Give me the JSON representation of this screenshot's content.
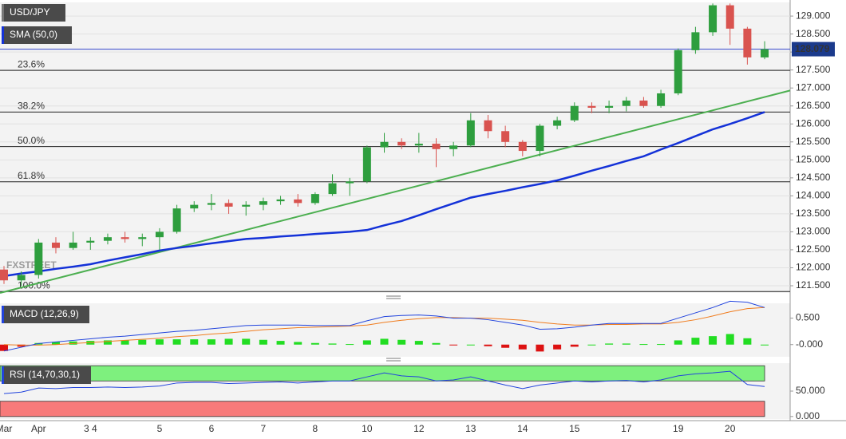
{
  "chart_data": [
    {
      "type": "candlestick",
      "symbol": "USD/JPY",
      "indicator": "SMA (50,0)",
      "watermark": "FXSTREET",
      "categories": [
        "Mar",
        null,
        "Apr",
        null,
        null,
        "3 4",
        null,
        null,
        null,
        "5",
        null,
        null,
        "6",
        null,
        null,
        "7",
        null,
        null,
        "8",
        null,
        null,
        "10",
        null,
        null,
        "12",
        null,
        null,
        "13",
        null,
        null,
        "14",
        null,
        null,
        "15",
        null,
        null,
        "17",
        null,
        null,
        "19",
        null,
        null,
        "20",
        null,
        null
      ],
      "ohlc": [
        [
          121.95,
          122.05,
          121.55,
          121.65
        ],
        [
          121.65,
          121.9,
          121.5,
          121.8
        ],
        [
          121.8,
          122.8,
          121.7,
          122.7
        ],
        [
          122.7,
          122.85,
          122.4,
          122.55
        ],
        [
          122.55,
          123.0,
          122.5,
          122.7
        ],
        [
          122.7,
          122.85,
          122.5,
          122.75
        ],
        [
          122.75,
          122.95,
          122.65,
          122.85
        ],
        [
          122.85,
          123.0,
          122.7,
          122.8
        ],
        [
          122.8,
          122.95,
          122.6,
          122.85
        ],
        [
          122.85,
          123.1,
          122.5,
          123.0
        ],
        [
          123.0,
          123.75,
          122.95,
          123.65
        ],
        [
          123.65,
          123.85,
          123.55,
          123.75
        ],
        [
          123.75,
          124.05,
          123.6,
          123.8
        ],
        [
          123.8,
          123.9,
          123.5,
          123.7
        ],
        [
          123.7,
          123.85,
          123.45,
          123.75
        ],
        [
          123.75,
          123.95,
          123.6,
          123.85
        ],
        [
          123.85,
          124.0,
          123.75,
          123.9
        ],
        [
          123.9,
          124.05,
          123.7,
          123.8
        ],
        [
          123.8,
          124.1,
          123.75,
          124.05
        ],
        [
          124.05,
          124.6,
          124.0,
          124.35
        ],
        [
          124.35,
          124.5,
          124.0,
          124.4
        ],
        [
          124.4,
          125.4,
          124.35,
          125.35
        ],
        [
          125.35,
          125.75,
          125.2,
          125.5
        ],
        [
          125.5,
          125.6,
          125.3,
          125.4
        ],
        [
          125.4,
          125.75,
          125.2,
          125.45
        ],
        [
          125.45,
          125.6,
          124.8,
          125.3
        ],
        [
          125.3,
          125.5,
          125.1,
          125.4
        ],
        [
          125.4,
          126.3,
          125.35,
          126.1
        ],
        [
          126.1,
          126.25,
          125.6,
          125.8
        ],
        [
          125.8,
          125.95,
          125.35,
          125.5
        ],
        [
          125.5,
          125.55,
          125.1,
          125.25
        ],
        [
          125.25,
          126.0,
          125.1,
          125.95
        ],
        [
          125.95,
          126.2,
          125.85,
          126.1
        ],
        [
          126.1,
          126.6,
          126.05,
          126.5
        ],
        [
          126.5,
          126.6,
          126.3,
          126.45
        ],
        [
          126.45,
          126.65,
          126.3,
          126.5
        ],
        [
          126.5,
          126.75,
          126.35,
          126.65
        ],
        [
          126.65,
          126.75,
          126.45,
          126.5
        ],
        [
          126.5,
          126.95,
          126.45,
          126.85
        ],
        [
          126.85,
          128.1,
          126.8,
          128.05
        ],
        [
          128.05,
          128.7,
          127.95,
          128.55
        ],
        [
          128.55,
          129.35,
          128.45,
          129.3
        ],
        [
          129.3,
          129.35,
          128.2,
          128.65
        ],
        [
          128.65,
          128.7,
          127.65,
          127.85
        ],
        [
          127.85,
          128.3,
          127.8,
          128.079
        ]
      ],
      "up_color": "#2e9e3e",
      "down_color": "#d9534f",
      "sma": [
        121.77,
        121.84,
        121.9,
        121.97,
        122.03,
        122.1,
        122.2,
        122.29,
        122.38,
        122.48,
        122.55,
        122.61,
        122.68,
        122.74,
        122.8,
        122.83,
        122.87,
        122.9,
        122.94,
        122.97,
        123.0,
        123.05,
        123.18,
        123.3,
        123.46,
        123.63,
        123.79,
        123.95,
        124.05,
        124.14,
        124.24,
        124.33,
        124.43,
        124.56,
        124.7,
        124.83,
        124.97,
        125.1,
        125.29,
        125.47,
        125.66,
        125.85,
        126.0,
        126.16,
        126.33
      ],
      "sma_color": "#1432d8",
      "trendline": [
        121.3,
        126.93
      ],
      "trendline_color": "#4caf50",
      "fib_levels": [
        {
          "label": "23.6%",
          "value": 127.49
        },
        {
          "label": "38.2%",
          "value": 126.33
        },
        {
          "label": "50.0%",
          "value": 125.37
        },
        {
          "label": "61.8%",
          "value": 124.39
        },
        {
          "label": "100.0%",
          "value": 121.34
        }
      ],
      "last_price": 128.079,
      "ylim": [
        121.3,
        129.38
      ],
      "yticks": [
        {
          "value": 121.5,
          "label": "121.500"
        },
        {
          "value": 122,
          "label": "122.000"
        },
        {
          "value": 122.5,
          "label": "122.500"
        },
        {
          "value": 123,
          "label": "123.000"
        },
        {
          "value": 123.5,
          "label": "123.500"
        },
        {
          "value": 124,
          "label": "124.000"
        },
        {
          "value": 124.5,
          "label": "124.500"
        },
        {
          "value": 125,
          "label": "125.000"
        },
        {
          "value": 125.5,
          "label": "125.500"
        },
        {
          "value": 126,
          "label": "126.000"
        },
        {
          "value": 126.5,
          "label": "126.500"
        },
        {
          "value": 127,
          "label": "127.000"
        },
        {
          "value": 127.5,
          "label": "127.500"
        },
        {
          "value": 128,
          "label": "128.000"
        },
        {
          "value": 128.5,
          "label": "128.500"
        },
        {
          "value": 129,
          "label": "129.000"
        }
      ],
      "grid": true
    },
    {
      "type": "macd",
      "title": "MACD (12,26,9)",
      "macd": [
        -0.12,
        -0.05,
        0.02,
        0.05,
        0.08,
        0.11,
        0.14,
        0.16,
        0.19,
        0.22,
        0.25,
        0.27,
        0.3,
        0.33,
        0.36,
        0.37,
        0.37,
        0.37,
        0.36,
        0.36,
        0.36,
        0.45,
        0.53,
        0.55,
        0.56,
        0.54,
        0.5,
        0.5,
        0.47,
        0.42,
        0.37,
        0.29,
        0.3,
        0.33,
        0.37,
        0.4,
        0.4,
        0.4,
        0.4,
        0.5,
        0.6,
        0.7,
        0.82,
        0.8,
        0.7
      ],
      "signal": [
        0.0,
        -0.01,
        -0.01,
        0.0,
        0.02,
        0.04,
        0.06,
        0.08,
        0.1,
        0.12,
        0.15,
        0.17,
        0.2,
        0.22,
        0.25,
        0.28,
        0.3,
        0.32,
        0.33,
        0.34,
        0.35,
        0.37,
        0.42,
        0.46,
        0.49,
        0.51,
        0.51,
        0.5,
        0.5,
        0.48,
        0.46,
        0.42,
        0.39,
        0.37,
        0.37,
        0.38,
        0.38,
        0.39,
        0.39,
        0.42,
        0.47,
        0.54,
        0.62,
        0.68,
        0.7
      ],
      "histogram": [
        -0.12,
        -0.04,
        0.03,
        0.05,
        0.06,
        0.07,
        0.08,
        0.08,
        0.09,
        0.1,
        0.1,
        0.1,
        0.1,
        0.11,
        0.11,
        0.09,
        0.07,
        0.05,
        0.03,
        0.02,
        0.01,
        0.08,
        0.11,
        0.09,
        0.07,
        0.03,
        -0.01,
        0.0,
        -0.03,
        -0.06,
        -0.09,
        -0.13,
        -0.09,
        -0.04,
        0.0,
        0.02,
        0.02,
        0.01,
        0.01,
        0.08,
        0.13,
        0.16,
        0.2,
        0.12,
        0.0
      ],
      "macd_color": "#2244dd",
      "signal_color": "#f07c1e",
      "pos_color": "#22dd22",
      "neg_color": "#dd1111",
      "ylim": [
        -0.23,
        0.78
      ],
      "yticks": [
        {
          "value": 0,
          "label": "-0.000"
        },
        {
          "value": 0.5,
          "label": "0.500"
        }
      ]
    },
    {
      "type": "rsi",
      "title": "RSI (14,70,30,1)",
      "values": [
        45,
        48,
        56,
        55,
        57,
        57,
        58,
        57,
        58,
        60,
        66,
        67,
        67,
        65,
        66,
        67,
        68,
        66,
        68,
        70,
        70,
        78,
        86,
        80,
        78,
        70,
        72,
        78,
        70,
        62,
        55,
        62,
        66,
        70,
        68,
        70,
        71,
        68,
        72,
        80,
        84,
        86,
        89,
        63,
        59
      ],
      "color": "#2244dd",
      "bands": [
        {
          "from": 70,
          "to": 100,
          "color": "#7ef07e"
        },
        {
          "from": 0,
          "to": 30,
          "color": "#f77a7a"
        }
      ],
      "ylim": [
        -5,
        105
      ],
      "yticks": [
        {
          "value": 0,
          "label": "0.000"
        },
        {
          "value": 50,
          "label": "50.000"
        }
      ]
    }
  ]
}
